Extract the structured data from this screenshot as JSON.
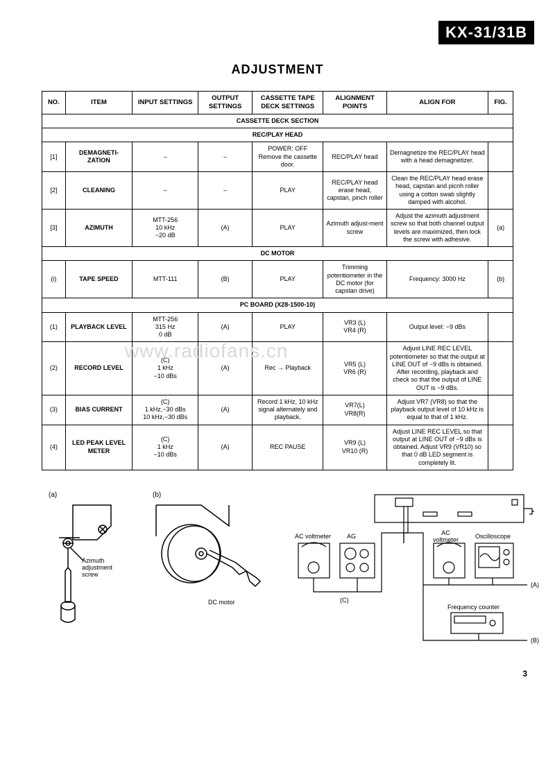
{
  "model_badge": "KX-31/31B",
  "title": "ADJUSTMENT",
  "page_number": "3",
  "watermark": "www.radiofans.cn",
  "headers": {
    "no": "NO.",
    "item": "ITEM",
    "input": "INPUT SETTINGS",
    "output": "OUTPUT SETTINGS",
    "cassette": "CASSETTE TAPE DECK SETTINGS",
    "align_pts": "ALIGNMENT POINTS",
    "align_for": "ALIGN FOR",
    "fig": "FIG."
  },
  "sections": {
    "cassette_deck": "CASSETTE DECK SECTION",
    "rec_play_head": "REC/PLAY HEAD",
    "dc_motor": "DC MOTOR",
    "pc_board": "PC BOARD  (X28-1500-10)"
  },
  "rows": {
    "r1": {
      "no": "[1]",
      "item": "DEMAGNETI-ZATION",
      "input": "–",
      "output": "–",
      "cassette": "POWER: OFF\nRemove the cassette door.",
      "align_pts": "REC/PLAY head",
      "align_for": "Demagnetize the REC/PLAY head with a head demagnetizer.",
      "fig": ""
    },
    "r2": {
      "no": "[2]",
      "item": "CLEANING",
      "input": "–",
      "output": "–",
      "cassette": "PLAY",
      "align_pts": "REC/PLAY head erase head, capstan, pinch roller",
      "align_for": "Clean the REC/PLAY head erase head, capstan and picnh roller using a cotton swab slightly damped with alcohol.",
      "fig": ""
    },
    "r3": {
      "no": "[3]",
      "item": "AZIMUTH",
      "input": "MTT-256\n10 kHz\n−20 dB",
      "output": "(A)",
      "cassette": "PLAY",
      "align_pts": "Azimuth adjust-ment screw",
      "align_for": "Adjust the azimuth adjustment screw so that both channel output levels are maximized, then lock the screw with adhesive.",
      "fig": "(a)"
    },
    "ri": {
      "no": "(i)",
      "item": "TAPE SPEED",
      "input": "MTT-111",
      "output": "(B)",
      "cassette": "PLAY",
      "align_pts": "Trimming potentiometer in the DC motor (for capstan drive)",
      "align_for": "Frequency: 3000 Hz",
      "fig": "(b)"
    },
    "p1": {
      "no": "(1)",
      "item": "PLAYBACK LEVEL",
      "input": "MTT-256\n315 Hz\n0 dB",
      "output": "(A)",
      "cassette": "PLAY",
      "align_pts": "VR3 (L)\nVR4 (R)",
      "align_for": "Output level: −9 dBs",
      "fig": ""
    },
    "p2": {
      "no": "(2)",
      "item": "RECORD LEVEL",
      "input": "(C)\n1 kHz\n−10 dBs",
      "output": "(A)",
      "cassette": "Rec → Playback",
      "align_pts": "VR5 (L)\nVR6 (R)",
      "align_for": "Adjust LINE REC LEVEL potentiometer so that the output at LINE OUT of −9 dBs is obtained. After recording, playback and check so that the output of LINE OUT is −9 dBs.",
      "fig": ""
    },
    "p3": {
      "no": "(3)",
      "item": "BIAS CURRENT",
      "input": "(C)\n1 kHz,−30 dBs\n10 kHz,−30 dBs",
      "output": "(A)",
      "cassette": "Record 1 kHz, 10 kHz signal alternately and playback.",
      "align_pts": "VR7(L)\nVR8(R)",
      "align_for": "Adjust VR7 (VR8) so that the playback output level of 10 kHz is equal to that of 1 kHz.",
      "fig": ""
    },
    "p4": {
      "no": "(4)",
      "item": "LED PEAK LEVEL METER",
      "input": "(C)\n1 kHz\n−10 dBs",
      "output": "(A)",
      "cassette": "REC PAUSE",
      "align_pts": "VR9 (L)\nVR10 (R)",
      "align_for": "Adjust LINE REC LEVEL so that output at LINE OUT of −9 dBs is obtained. Adjust VR9 (VR10) so that 0 dB LED segment is completely lit.",
      "fig": ""
    }
  },
  "diagram_labels": {
    "a": "(a)",
    "b": "(b)",
    "azimuth_screw": "Azimuth adjustment screw",
    "dc_motor": "DC motor",
    "ac_voltmeter": "AC voltmeter",
    "ag": "AG",
    "ac_voltmeter2": "AC voltmeter",
    "oscilloscope": "Oscilloscope",
    "freq_counter": "Frequency counter",
    "tag_a": "(A)",
    "tag_b": "(B)",
    "tag_c": "(C)"
  }
}
